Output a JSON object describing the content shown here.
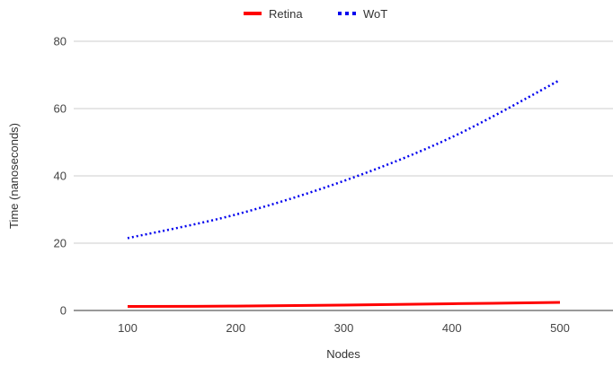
{
  "chart_data": {
    "type": "line",
    "xlabel": "Nodes",
    "ylabel": "Time (nanoseconds)",
    "x": [
      100,
      200,
      300,
      400,
      500
    ],
    "x_ticks": [
      "100",
      "200",
      "300",
      "400",
      "500"
    ],
    "ylim": [
      0,
      80
    ],
    "y_ticks": [
      "0",
      "20",
      "40",
      "60",
      "80"
    ],
    "grid": "horizontal",
    "legend_position": "top",
    "series": [
      {
        "name": "Retina",
        "values": [
          1.2,
          1.3,
          1.6,
          2.0,
          2.4
        ],
        "color": "#ff0000",
        "style": "solid"
      },
      {
        "name": "WoT",
        "values": [
          21.5,
          28.5,
          38.5,
          51.5,
          68.5
        ],
        "color": "#0000ee",
        "style": "dotted"
      }
    ]
  }
}
